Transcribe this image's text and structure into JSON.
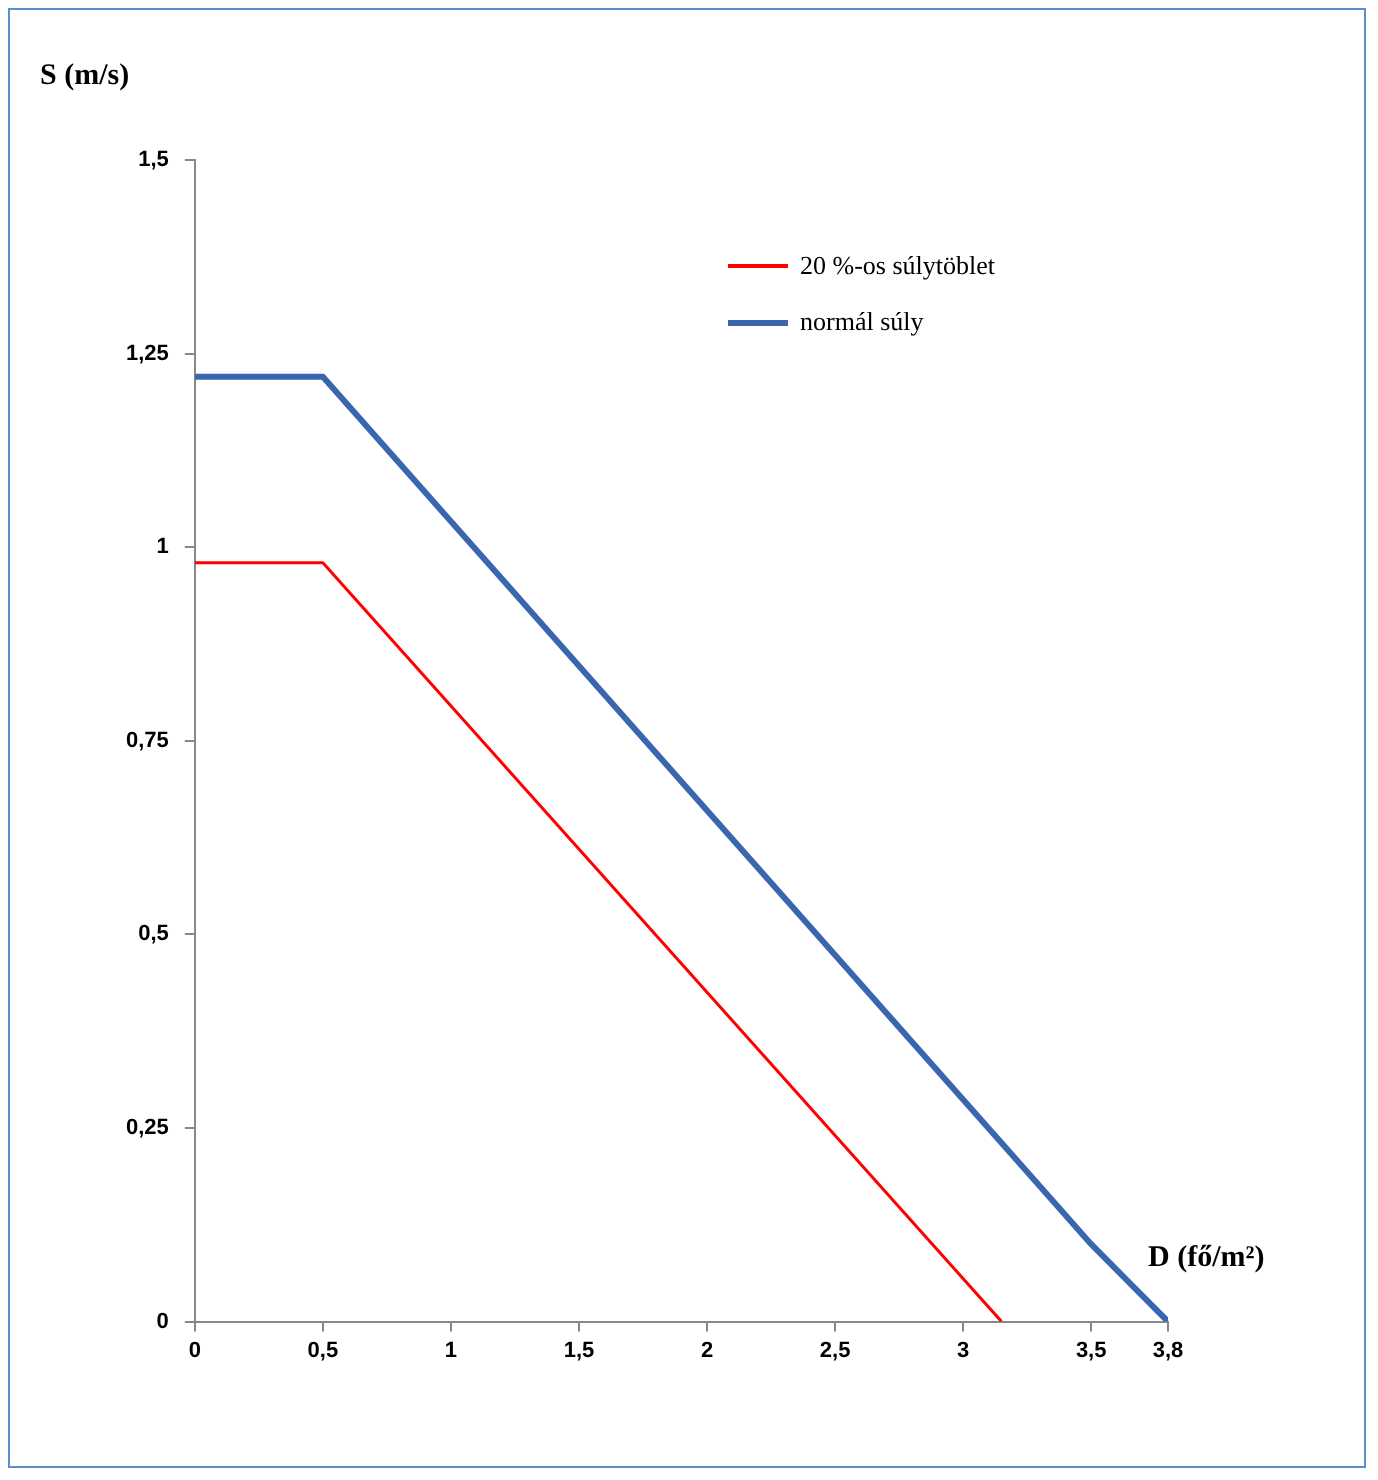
{
  "chart_data": {
    "type": "line",
    "xlabel": "D (fő/m²)",
    "ylabel": "S (m/s)",
    "xlim": [
      0,
      3.8
    ],
    "ylim": [
      0,
      1.5
    ],
    "xticks": [
      0,
      {
        "value": 0.5,
        "label": "0,5"
      },
      1,
      {
        "value": 1.5,
        "label": "1,5"
      },
      2,
      {
        "value": 2.5,
        "label": "2,5"
      },
      3,
      {
        "value": 3.5,
        "label": "3,5"
      },
      {
        "value": 3.8,
        "label": "3,8"
      }
    ],
    "yticks": [
      0,
      {
        "value": 0.25,
        "label": "0,25"
      },
      {
        "value": 0.5,
        "label": "0,5"
      },
      {
        "value": 0.75,
        "label": "0,75"
      },
      1,
      {
        "value": 1.25,
        "label": "1,25"
      },
      {
        "value": 1.5,
        "label": "1,5"
      }
    ],
    "series": [
      {
        "name": "20 %-os súlytöblet",
        "color": "#ff0000",
        "x": [
          0,
          0.5,
          3.15
        ],
        "values": [
          0.98,
          0.98,
          0
        ]
      },
      {
        "name": "normál súly",
        "color": "#3a66b0",
        "x": [
          0,
          0.5,
          3.5,
          3.8
        ],
        "values": [
          1.22,
          1.22,
          0.1,
          0
        ]
      }
    ],
    "grid": false,
    "legend": "top right",
    "marker": "none",
    "line_style": "solid"
  }
}
